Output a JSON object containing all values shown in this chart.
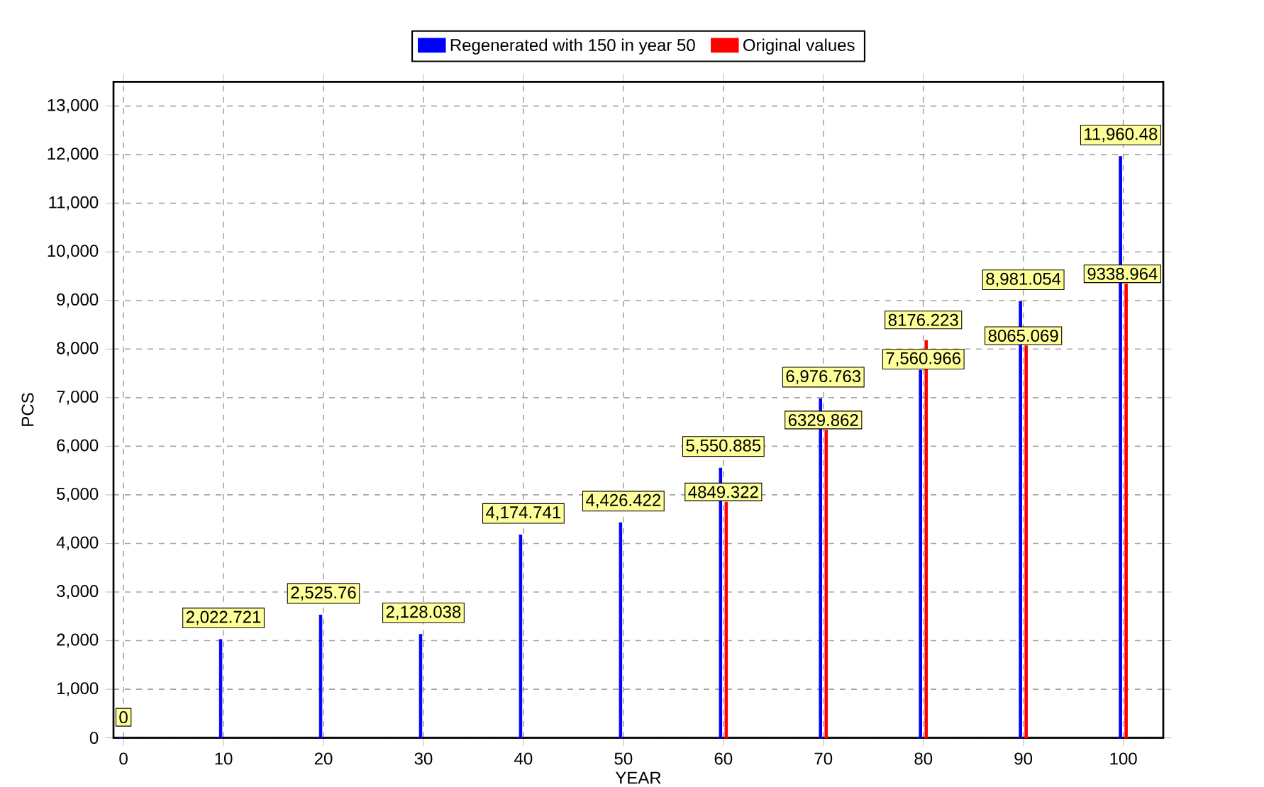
{
  "chart_data": {
    "type": "bar",
    "xlabel": "YEAR",
    "ylabel": "PCS",
    "series": [
      {
        "name": "Regenerated with 150 in year 50",
        "color": "#0000ff",
        "x": [
          0,
          10,
          20,
          30,
          40,
          50,
          60,
          70,
          80,
          90,
          100
        ],
        "values": [
          0,
          2022.721,
          2525.76,
          2128.038,
          4174.741,
          4426.422,
          5550.885,
          6976.763,
          7560.966,
          8981.054,
          11960.48
        ],
        "value_labels": [
          "0",
          "2,022.721",
          "2,525.76",
          "2,128.038",
          "4,174.741",
          "4,426.422",
          "5,550.885",
          "6,976.763",
          "7,560.966",
          "8,981.054",
          "11,960.48"
        ]
      },
      {
        "name": "Original values",
        "color": "#ff0000",
        "x": [
          60,
          70,
          80,
          90,
          100
        ],
        "values": [
          4849.322,
          6329.862,
          8176.223,
          8065.069,
          9338.964
        ],
        "value_labels": [
          "4849.322",
          "6329.862",
          "8176.223",
          "8065.069",
          "9338.964"
        ]
      }
    ],
    "xlim": [
      -1,
      104
    ],
    "ylim": [
      0,
      13500
    ],
    "xticks": [
      0,
      10,
      20,
      30,
      40,
      50,
      60,
      70,
      80,
      90,
      100
    ],
    "yticks": [
      {
        "value": 0,
        "label": "0"
      },
      {
        "value": 1000,
        "label": "1,000"
      },
      {
        "value": 2000,
        "label": "2,000"
      },
      {
        "value": 3000,
        "label": "3,000"
      },
      {
        "value": 4000,
        "label": "4,000"
      },
      {
        "value": 5000,
        "label": "5,000"
      },
      {
        "value": 6000,
        "label": "6,000"
      },
      {
        "value": 7000,
        "label": "7,000"
      },
      {
        "value": 8000,
        "label": "8,000"
      },
      {
        "value": 9000,
        "label": "9,000"
      },
      {
        "value": 10000,
        "label": "10,000"
      },
      {
        "value": 11000,
        "label": "11,000"
      },
      {
        "value": 12000,
        "label": "12,000"
      },
      {
        "value": 13000,
        "label": "13,000"
      }
    ],
    "grid": true,
    "legend": "top"
  }
}
